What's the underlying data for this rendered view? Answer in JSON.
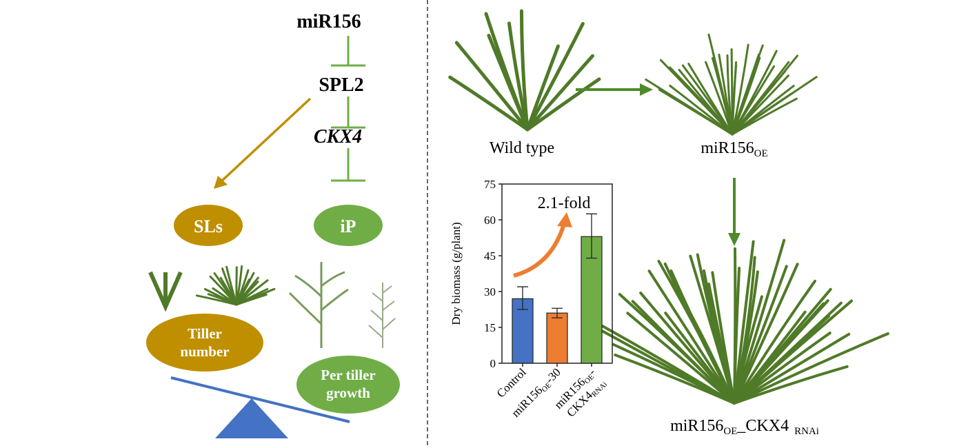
{
  "pathway": {
    "nodes": [
      "miR156",
      "SPL2",
      "CKX4"
    ],
    "sls": "SLs",
    "ip": "iP",
    "tiller_number": [
      "Tiller",
      "number"
    ],
    "per_tiller_growth": [
      "Per tiller",
      "growth"
    ]
  },
  "plants": {
    "wild_type": "Wild type",
    "mir_oe": {
      "base": "miR156",
      "sub": "OE"
    },
    "mir_oe_ckx4": {
      "base": "miR156",
      "sub1": "OE",
      "mid": "_CKX4",
      "sub2": "RNAi"
    }
  },
  "colors": {
    "gold": "#bf8f00",
    "green": "#70ad47",
    "plant_green": "#4f7a28",
    "blue": "#4472c4",
    "orange": "#ed7d31"
  },
  "chart_data": {
    "type": "bar",
    "ylabel": "Dry biomass (g/plant)",
    "ylim": [
      0,
      75
    ],
    "yticks": [
      "0",
      "15",
      "30",
      "45",
      "60",
      "75"
    ],
    "categories": [
      {
        "base": "Control",
        "sub": "",
        "rest": ""
      },
      {
        "base": "miR156",
        "sub": "OE",
        "rest": "-30"
      },
      {
        "base": "miR156",
        "sub": "OE",
        "rest": "-",
        "line2": "CKX4",
        "sub2": "RNAi"
      }
    ],
    "values": [
      27,
      21,
      53
    ],
    "errors": [
      [
        22.5,
        32
      ],
      [
        19,
        23
      ],
      [
        44,
        62.5
      ]
    ],
    "bar_colors": [
      "#4472c4",
      "#ed7d31",
      "#70ad47"
    ],
    "annotation": "2.1-fold"
  }
}
